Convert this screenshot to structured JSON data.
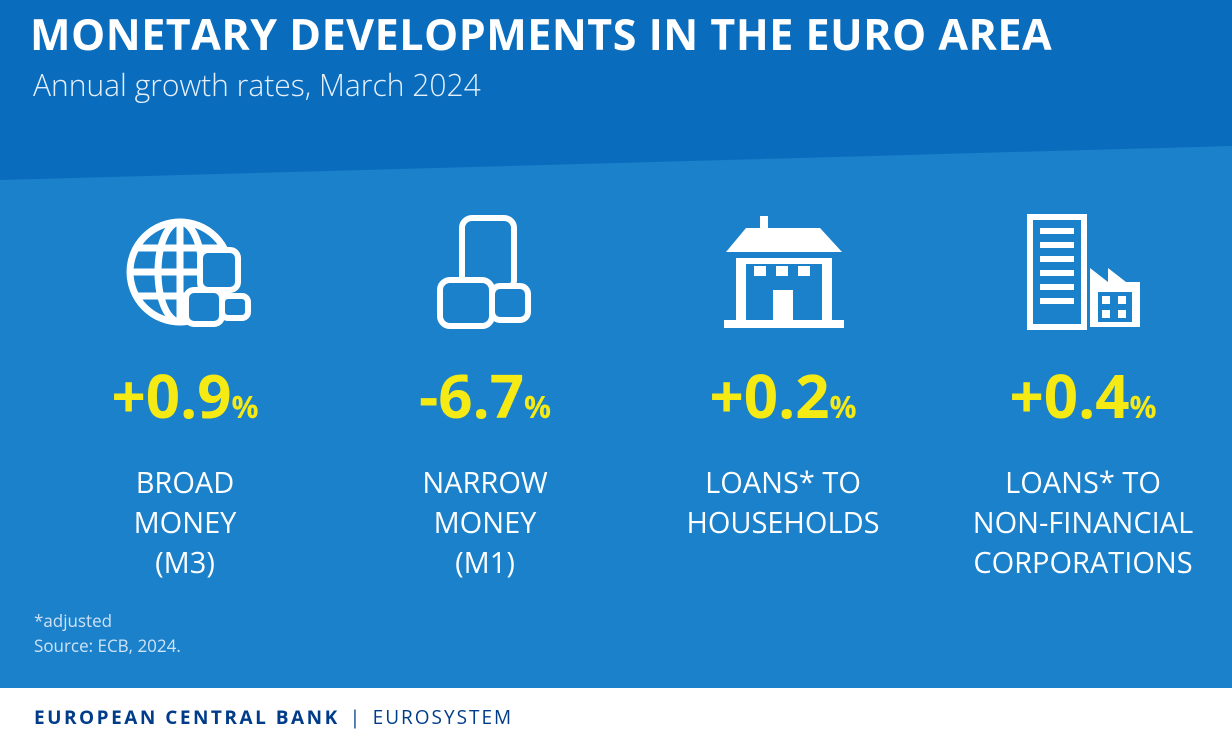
{
  "header": {
    "title": "MONETARY DEVELOPMENTS IN THE EURO AREA",
    "subtitle": "Annual growth rates, March 2024"
  },
  "items": [
    {
      "value": "+0.9",
      "unit": "%",
      "label": [
        "BROAD",
        "MONEY",
        "(M3)"
      ]
    },
    {
      "value": "-6.7",
      "unit": "%",
      "label": [
        "NARROW",
        "MONEY",
        "(M1)"
      ]
    },
    {
      "value": "+0.2",
      "unit": "%",
      "label": [
        "LOANS* TO",
        "HOUSEHOLDS"
      ]
    },
    {
      "value": "+0.4",
      "unit": "%",
      "label": [
        "LOANS* TO",
        "NON-FINANCIAL",
        "CORPORATIONS"
      ]
    }
  ],
  "notes": [
    "*adjusted",
    "Source: ECB, 2024."
  ],
  "footer": {
    "brand": "EUROPEAN CENTRAL BANK",
    "system": "EUROSYSTEM"
  }
}
